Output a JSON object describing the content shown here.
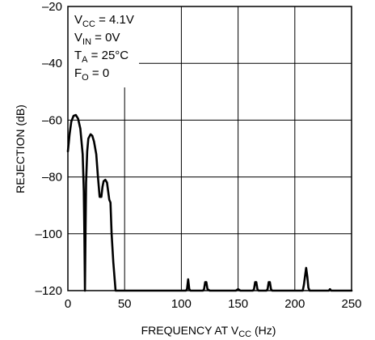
{
  "chart_data": {
    "type": "line",
    "xlabel": "FREQUENCY AT VCC (Hz)",
    "xlabel_parts": {
      "main": "FREQUENCY AT V",
      "sub": "CC",
      "tail": " (Hz)"
    },
    "ylabel": "REJECTION (dB)",
    "xlim": [
      0,
      250
    ],
    "ylim": [
      -120,
      -20
    ],
    "x_ticks": [
      0,
      50,
      100,
      150,
      200,
      250
    ],
    "y_ticks": [
      -20,
      -40,
      -60,
      -80,
      -100,
      -120
    ],
    "x_tick_labels": [
      "0",
      "50",
      "100",
      "150",
      "200",
      "250"
    ],
    "y_tick_labels": [
      "–20",
      "–40",
      "–60",
      "–80",
      "–100",
      "–120"
    ],
    "grid": true,
    "conditions": [
      {
        "main": "V",
        "sub": "CC",
        "tail": " = 4.1V"
      },
      {
        "main": "V",
        "sub": "IN",
        "tail": " = 0V"
      },
      {
        "main": "T",
        "sub": "A",
        "tail": " = 25°C"
      },
      {
        "main": "F",
        "sub": "O",
        "tail": " = 0"
      }
    ],
    "series": [
      {
        "x": [
          0,
          1.5,
          3,
          5,
          7,
          9,
          11,
          13,
          14,
          14.5,
          15,
          15.5,
          16,
          17,
          18,
          20,
          21.5,
          23,
          25,
          26.5,
          28,
          29.5,
          30.5,
          31.5,
          33,
          34.5,
          35.5,
          36.5,
          37.5,
          38.5,
          40,
          42,
          43,
          50,
          70,
          100,
          104,
          105,
          106,
          107,
          108,
          110,
          119,
          120,
          121,
          122,
          123,
          125,
          148,
          150,
          152,
          163,
          164,
          165,
          166,
          167,
          168,
          175,
          176,
          177,
          178,
          179,
          180,
          207,
          208,
          209,
          210,
          211,
          212,
          213,
          214,
          230,
          231,
          232,
          240,
          250
        ],
        "y": [
          -71,
          -65,
          -60.5,
          -58.5,
          -58.2,
          -59.5,
          -63,
          -72,
          -85,
          -100,
          -120,
          -100,
          -82,
          -71,
          -66.5,
          -65,
          -65.5,
          -67.5,
          -72,
          -80,
          -87,
          -87,
          -83.5,
          -81.5,
          -81,
          -82,
          -85,
          -88,
          -89,
          -100,
          -110,
          -120,
          -120,
          -120,
          -120,
          -120,
          -120,
          -119.5,
          -116,
          -119.5,
          -120,
          -120,
          -120,
          -119.5,
          -117,
          -117,
          -119.5,
          -120,
          -120,
          -119.5,
          -120,
          -120,
          -119.5,
          -117,
          -117,
          -119.5,
          -120,
          -120,
          -119.5,
          -117,
          -117,
          -119.5,
          -120,
          -120,
          -118,
          -115,
          -112,
          -115,
          -119,
          -120,
          -120,
          -120,
          -119.5,
          -120,
          -120,
          -120
        ]
      }
    ]
  }
}
